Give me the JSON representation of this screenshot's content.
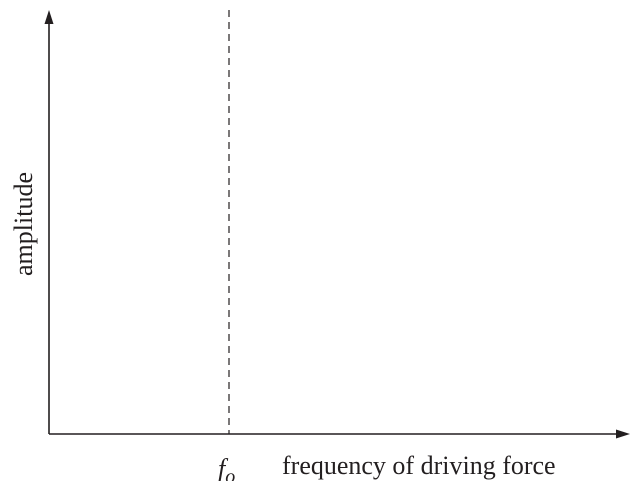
{
  "axes": {
    "y_label": "amplitude",
    "x_label": "frequency of driving force"
  },
  "marker": {
    "symbol": "f",
    "subscript": "o"
  },
  "colors": {
    "ink": "#231f20",
    "background": "#ffffff"
  }
}
